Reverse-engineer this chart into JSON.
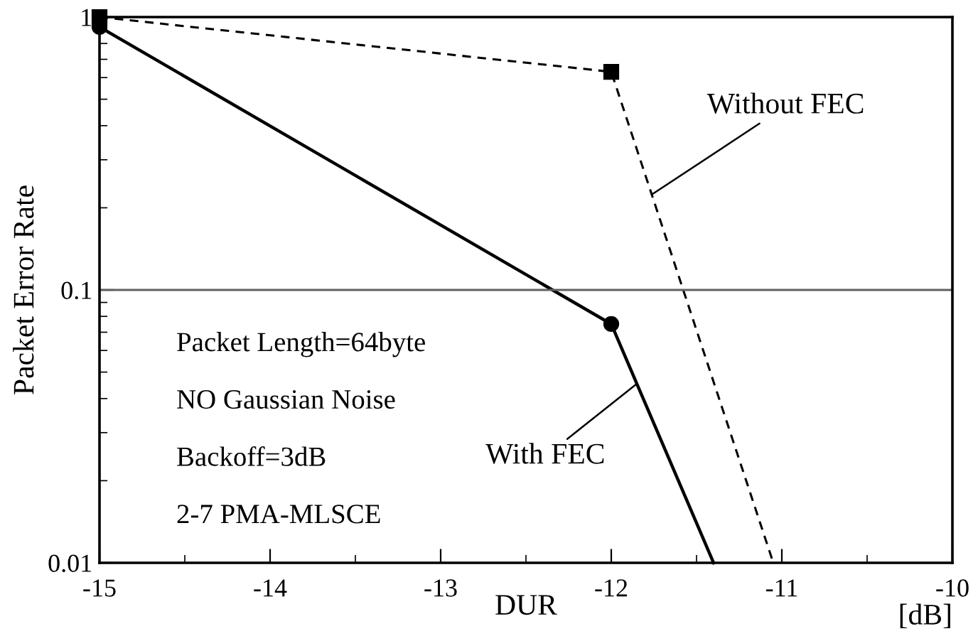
{
  "chart_data": {
    "type": "line",
    "xlabel": "DUR",
    "ylabel": "Packet Error Rate",
    "log": "y",
    "xlim": [
      -15,
      -10
    ],
    "xticks": [
      -15,
      -14,
      -13,
      -12,
      -11,
      -10
    ],
    "ylim": [
      0.01,
      1
    ],
    "yticks": [
      {
        "value": 0.01,
        "label": "0.01"
      },
      {
        "value": 0.1,
        "label": "0.1"
      },
      {
        "value": 1,
        "label": "1"
      }
    ],
    "series": [
      {
        "name": "Without FEC",
        "color": "#000000",
        "marker": "square",
        "line_style": "dashed",
        "x": [
          -15,
          -12,
          -11.05
        ],
        "values": [
          1.0,
          0.63,
          0.01
        ]
      },
      {
        "name": "With FEC",
        "color": "#000000",
        "marker": "circle",
        "line_style": "solid",
        "x": [
          -15,
          -12,
          -11.4
        ],
        "values": [
          0.92,
          0.075,
          0.01
        ]
      }
    ],
    "ref_lines": [
      {
        "axis": "y",
        "value": 0.1,
        "color": "#606060"
      }
    ],
    "annotations": [
      "[dB]",
      "Packet Length=64byte",
      "NO Gaussian Noise",
      "Backoff=3dB",
      "2-7 PMA-MLSCE"
    ]
  }
}
